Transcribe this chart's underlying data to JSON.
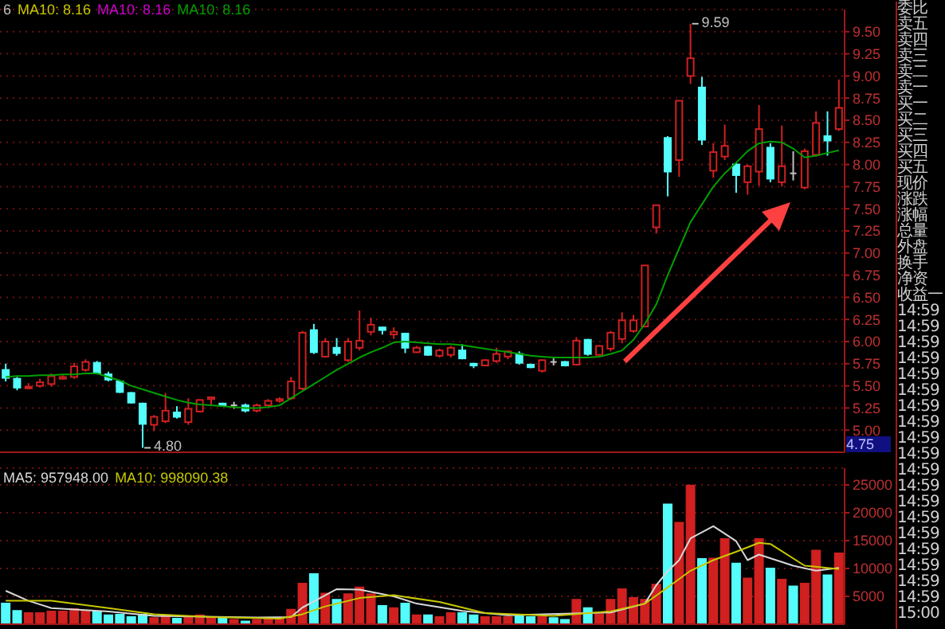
{
  "chart_data": [
    {
      "type": "candlestick",
      "categories": [
        null,
        null,
        null,
        null,
        null,
        null,
        null,
        null,
        null,
        null,
        null,
        null,
        null,
        null,
        null,
        null,
        null,
        null,
        null,
        null,
        null,
        null,
        null,
        null,
        null,
        null,
        null,
        null,
        null,
        null,
        null,
        null,
        null,
        null,
        null,
        null,
        null,
        null,
        null,
        null,
        null,
        null,
        null,
        null,
        null,
        null,
        null,
        null,
        null,
        null,
        null,
        null,
        null,
        null,
        null,
        null,
        null,
        null,
        null,
        null,
        null,
        null,
        null,
        null,
        null,
        null,
        null,
        null,
        null,
        null,
        null,
        null,
        null,
        null
      ],
      "ohlc": [
        [
          5.68,
          5.75,
          5.55,
          5.59
        ],
        [
          5.58,
          5.6,
          5.45,
          5.48
        ],
        [
          5.48,
          5.53,
          5.46,
          5.49
        ],
        [
          5.5,
          5.58,
          5.48,
          5.54
        ],
        [
          5.52,
          5.64,
          5.49,
          5.61
        ],
        [
          5.58,
          5.62,
          5.57,
          5.6
        ],
        [
          5.6,
          5.76,
          5.58,
          5.72
        ],
        [
          5.68,
          5.8,
          5.66,
          5.77
        ],
        [
          5.76,
          5.78,
          5.63,
          5.64
        ],
        [
          5.63,
          5.66,
          5.55,
          5.57
        ],
        [
          5.55,
          5.56,
          5.42,
          5.43
        ],
        [
          5.42,
          5.43,
          5.3,
          5.31
        ],
        [
          5.3,
          5.31,
          4.8,
          5.07
        ],
        [
          5.06,
          5.17,
          4.99,
          5.15
        ],
        [
          5.1,
          5.42,
          5.08,
          5.22
        ],
        [
          5.2,
          5.27,
          5.13,
          5.15
        ],
        [
          5.09,
          5.36,
          5.06,
          5.24
        ],
        [
          5.21,
          5.35,
          5.2,
          5.34
        ],
        [
          5.35,
          5.38,
          5.29,
          5.37
        ],
        [
          5.3,
          5.31,
          5.27,
          5.28
        ],
        [
          5.28,
          5.32,
          5.24,
          5.28
        ],
        [
          5.28,
          5.3,
          5.2,
          5.22
        ],
        [
          5.22,
          5.3,
          5.2,
          5.28
        ],
        [
          5.28,
          5.35,
          5.27,
          5.33
        ],
        [
          5.33,
          5.37,
          5.31,
          5.35
        ],
        [
          5.36,
          5.6,
          5.34,
          5.55
        ],
        [
          5.47,
          6.12,
          5.45,
          6.1
        ],
        [
          6.13,
          6.2,
          5.86,
          5.88
        ],
        [
          5.83,
          6.04,
          5.82,
          6.0
        ],
        [
          5.93,
          6.04,
          5.84,
          5.87
        ],
        [
          5.79,
          6.04,
          5.77,
          6.0
        ],
        [
          5.93,
          6.35,
          5.9,
          6.01
        ],
        [
          6.11,
          6.27,
          6.07,
          6.19
        ],
        [
          6.16,
          6.17,
          6.08,
          6.13
        ],
        [
          6.08,
          6.16,
          6.03,
          6.11
        ],
        [
          6.09,
          6.1,
          5.87,
          5.93
        ],
        [
          5.88,
          5.95,
          5.87,
          5.93
        ],
        [
          5.94,
          5.95,
          5.84,
          5.85
        ],
        [
          5.84,
          5.92,
          5.82,
          5.9
        ],
        [
          5.85,
          5.95,
          5.82,
          5.93
        ],
        [
          5.9,
          5.97,
          5.8,
          5.81
        ],
        [
          5.75,
          5.76,
          5.7,
          5.73
        ],
        [
          5.73,
          5.8,
          5.72,
          5.79
        ],
        [
          5.78,
          5.93,
          5.76,
          5.86
        ],
        [
          5.83,
          5.9,
          5.8,
          5.89
        ],
        [
          5.86,
          5.89,
          5.74,
          5.76
        ],
        [
          5.74,
          5.75,
          5.7,
          5.71
        ],
        [
          5.67,
          5.8,
          5.65,
          5.79
        ],
        [
          5.77,
          5.81,
          5.73,
          5.77
        ],
        [
          5.77,
          5.78,
          5.72,
          5.73
        ],
        [
          5.74,
          6.05,
          5.73,
          6.01
        ],
        [
          6.02,
          6.03,
          5.84,
          5.86
        ],
        [
          5.85,
          5.96,
          5.84,
          5.95
        ],
        [
          5.92,
          6.12,
          5.89,
          6.1
        ],
        [
          6.03,
          6.33,
          5.98,
          6.24
        ],
        [
          6.12,
          6.3,
          6.1,
          6.24
        ],
        [
          6.17,
          6.86,
          6.17,
          6.86
        ],
        [
          7.29,
          7.54,
          7.22,
          7.54
        ],
        [
          8.3,
          8.32,
          7.64,
          7.92
        ],
        [
          8.05,
          8.72,
          7.86,
          8.72
        ],
        [
          9.0,
          9.59,
          8.91,
          9.2
        ],
        [
          8.87,
          8.99,
          8.22,
          8.28
        ],
        [
          7.93,
          8.24,
          7.85,
          8.14
        ],
        [
          8.09,
          8.45,
          8.05,
          8.21
        ],
        [
          8.0,
          8.02,
          7.68,
          7.88
        ],
        [
          7.8,
          8.0,
          7.66,
          7.98
        ],
        [
          7.92,
          8.67,
          7.76,
          8.4
        ],
        [
          8.19,
          8.24,
          7.8,
          7.84
        ],
        [
          7.8,
          8.44,
          7.75,
          7.98
        ],
        [
          7.9,
          8.15,
          7.82,
          7.9
        ],
        [
          7.74,
          8.18,
          7.72,
          8.15
        ],
        [
          8.11,
          8.6,
          8.09,
          8.47
        ],
        [
          8.32,
          8.6,
          8.1,
          8.27
        ],
        [
          8.4,
          8.96,
          8.38,
          8.64
        ]
      ],
      "colors": [
        "#54fcfc",
        "#54fcfc",
        "#d02020",
        "#d02020",
        "#d02020",
        "#d02020",
        "#d02020",
        "#d02020",
        "#54fcfc",
        "#54fcfc",
        "#54fcfc",
        "#54fcfc",
        "#54fcfc",
        "#d02020",
        "#d02020",
        "#54fcfc",
        "#d02020",
        "#d02020",
        "#d02020",
        "#54fcfc",
        "#c0c0c0",
        "#54fcfc",
        "#d02020",
        "#d02020",
        "#d02020",
        "#d02020",
        "#d02020",
        "#54fcfc",
        "#d02020",
        "#54fcfc",
        "#d02020",
        "#d02020",
        "#d02020",
        "#54fcfc",
        "#d02020",
        "#54fcfc",
        "#d02020",
        "#54fcfc",
        "#d02020",
        "#d02020",
        "#54fcfc",
        "#54fcfc",
        "#d02020",
        "#d02020",
        "#d02020",
        "#54fcfc",
        "#54fcfc",
        "#d02020",
        "#c0c0c0",
        "#54fcfc",
        "#d02020",
        "#54fcfc",
        "#d02020",
        "#d02020",
        "#d02020",
        "#d02020",
        "#d02020",
        "#d02020",
        "#54fcfc",
        "#d02020",
        "#d02020",
        "#54fcfc",
        "#d02020",
        "#d02020",
        "#54fcfc",
        "#d02020",
        "#d02020",
        "#54fcfc",
        "#d02020",
        "#c0c0c0",
        "#d02020",
        "#d02020",
        "#54fcfc",
        "#d02020"
      ],
      "series": [
        {
          "type": "line",
          "name": "MA10: 8.16",
          "color": "#00a000",
          "values": [
            5.6,
            5.61,
            5.61,
            5.62,
            5.62,
            5.63,
            5.63,
            5.64,
            5.64,
            5.6,
            5.56,
            5.5,
            5.46,
            5.42,
            5.38,
            5.34,
            5.31,
            5.29,
            5.28,
            5.27,
            5.26,
            5.25,
            5.25,
            5.26,
            5.28,
            5.36,
            5.44,
            5.52,
            5.6,
            5.68,
            5.75,
            5.82,
            5.88,
            5.93,
            5.99,
            6.0,
            5.99,
            5.98,
            5.97,
            5.97,
            5.96,
            5.94,
            5.92,
            5.9,
            5.88,
            5.86,
            5.84,
            5.83,
            5.82,
            5.82,
            5.82,
            5.82,
            5.83,
            5.86,
            5.9,
            6.02,
            6.2,
            6.42,
            6.75,
            7.05,
            7.35,
            7.55,
            7.75,
            7.9,
            8.02,
            8.15,
            8.24,
            8.26,
            8.25,
            8.18,
            8.08,
            8.1,
            8.13,
            8.16
          ]
        }
      ],
      "ylim": [
        4.75,
        9.75
      ],
      "yticks": [
        {
          "value": 5,
          "label": "5.00"
        },
        {
          "value": 5.25,
          "label": "5.25"
        },
        {
          "value": 5.5,
          "label": "5.50"
        },
        {
          "value": 5.75,
          "label": "5.75"
        },
        {
          "value": 6,
          "label": "6.00"
        },
        {
          "value": 6.25,
          "label": "6.25"
        },
        {
          "value": 6.5,
          "label": "6.50"
        },
        {
          "value": 6.75,
          "label": "6.75"
        },
        {
          "value": 7,
          "label": "7.00"
        },
        {
          "value": 7.25,
          "label": "7.25"
        },
        {
          "value": 7.5,
          "label": "7.50"
        },
        {
          "value": 7.75,
          "label": "7.75"
        },
        {
          "value": 8,
          "label": "8.00"
        },
        {
          "value": 8.25,
          "label": "8.25"
        },
        {
          "value": 8.5,
          "label": "8.50"
        },
        {
          "value": 8.75,
          "label": "8.75"
        },
        {
          "value": 9,
          "label": "9.00"
        },
        {
          "value": 9.25,
          "label": "9.25"
        },
        {
          "value": 9.5,
          "label": "9.50"
        }
      ],
      "annotations": [
        "6",
        "MA10: 8.16",
        "MA10: 8.16",
        "9.59",
        "4.80",
        "4.75"
      ],
      "grid": "y",
      "legend": "top left",
      "tick_labels": "y"
    },
    {
      "type": "bar",
      "categories": [
        null,
        null,
        null,
        null,
        null,
        null,
        null,
        null,
        null,
        null,
        null,
        null,
        null,
        null,
        null,
        null,
        null,
        null,
        null,
        null,
        null,
        null,
        null,
        null,
        null,
        null,
        null,
        null,
        null,
        null,
        null,
        null,
        null,
        null,
        null,
        null,
        null,
        null,
        null,
        null,
        null,
        null,
        null,
        null,
        null,
        null,
        null,
        null,
        null,
        null,
        null,
        null,
        null,
        null,
        null,
        null,
        null,
        null,
        null,
        null,
        null,
        null,
        null,
        null,
        null,
        null,
        null,
        null,
        null,
        null,
        null,
        null,
        null,
        null
      ],
      "series": [
        {
          "type": "bar",
          "colors": [
            "#54fcfc",
            "#54fcfc",
            "#d02020",
            "#d02020",
            "#d02020",
            "#d02020",
            "#d02020",
            "#d02020",
            "#54fcfc",
            "#54fcfc",
            "#54fcfc",
            "#54fcfc",
            "#54fcfc",
            "#d02020",
            "#d02020",
            "#54fcfc",
            "#d02020",
            "#d02020",
            "#d02020",
            "#54fcfc",
            "#d02020",
            "#54fcfc",
            "#d02020",
            "#d02020",
            "#d02020",
            "#d02020",
            "#d02020",
            "#54fcfc",
            "#d02020",
            "#54fcfc",
            "#d02020",
            "#d02020",
            "#d02020",
            "#54fcfc",
            "#d02020",
            "#54fcfc",
            "#d02020",
            "#54fcfc",
            "#d02020",
            "#d02020",
            "#54fcfc",
            "#54fcfc",
            "#d02020",
            "#d02020",
            "#d02020",
            "#54fcfc",
            "#54fcfc",
            "#d02020",
            "#54fcfc",
            "#54fcfc",
            "#d02020",
            "#54fcfc",
            "#d02020",
            "#d02020",
            "#d02020",
            "#d02020",
            "#d02020",
            "#d02020",
            "#54fcfc",
            "#d02020",
            "#d02020",
            "#54fcfc",
            "#d02020",
            "#d02020",
            "#54fcfc",
            "#d02020",
            "#d02020",
            "#54fcfc",
            "#d02020",
            "#54fcfc",
            "#d02020",
            "#d02020",
            "#54fcfc",
            "#d02020"
          ],
          "values": [
            3700,
            2400,
            2000,
            2000,
            2300,
            2300,
            2700,
            2400,
            2300,
            1600,
            1700,
            1300,
            1700,
            1100,
            1600,
            1000,
            1300,
            1600,
            1300,
            1100,
            800,
            500,
            800,
            1000,
            1000,
            2600,
            7300,
            9000,
            5500,
            4400,
            5400,
            6600,
            5400,
            3300,
            2900,
            3700,
            1600,
            1600,
            1300,
            2000,
            2000,
            1600,
            1300,
            1300,
            1300,
            1500,
            1300,
            1300,
            1100,
            800,
            4400,
            2900,
            1800,
            4400,
            6300,
            4700,
            4400,
            7100,
            21500,
            18200,
            24900,
            11700,
            11800,
            15300,
            10900,
            8200,
            15300,
            10000,
            8000,
            6800,
            7300,
            13200,
            8800,
            12700
          ]
        },
        {
          "type": "line",
          "name": "MA5: 957948.00",
          "color": "#d8d8d8",
          "values": [
            6000,
            null,
            4200,
            null,
            2900,
            null,
            null,
            null,
            null,
            2300,
            null,
            null,
            null,
            1500,
            null,
            null,
            null,
            null,
            null,
            null,
            null,
            null,
            1200,
            null,
            null,
            1300,
            3000,
            null,
            5200,
            6300,
            null,
            6200,
            null,
            null,
            5000,
            null,
            3700,
            null,
            null,
            null,
            2400,
            null,
            null,
            null,
            1600,
            null,
            null,
            null,
            null,
            null,
            null,
            null,
            null,
            2100,
            null,
            null,
            3700,
            7000,
            9500,
            11500,
            15400,
            null,
            17600,
            null,
            14900,
            11500,
            12500,
            null,
            null,
            10500,
            null,
            9600,
            null,
            10100
          ]
        },
        {
          "type": "line",
          "name": "MA10: 998090.38",
          "color": "#c8c800",
          "values": [
            4200,
            null,
            null,
            null,
            4200,
            null,
            null,
            null,
            null,
            2900,
            null,
            null,
            null,
            1800,
            null,
            null,
            null,
            null,
            1300,
            null,
            null,
            null,
            1100,
            null,
            1000,
            null,
            1800,
            null,
            3200,
            null,
            null,
            4700,
            null,
            null,
            5200,
            null,
            null,
            null,
            4000,
            null,
            3000,
            null,
            2000,
            null,
            null,
            null,
            null,
            null,
            1500,
            null,
            null,
            null,
            null,
            2300,
            null,
            null,
            3700,
            null,
            6600,
            null,
            9600,
            null,
            11500,
            null,
            13000,
            null,
            14600,
            14400,
            null,
            null,
            10500,
            null,
            null,
            9900
          ]
        }
      ],
      "ylim": [
        0,
        28000
      ],
      "yticks": [
        5000,
        10000,
        15000,
        20000,
        25000
      ],
      "grid": "y",
      "legend": "top left",
      "tick_labels": "y"
    },
    {
      "type": "other",
      "annotations": [
        "委比",
        "卖五",
        "卖四",
        "卖三",
        "卖二",
        "卖一",
        "买一",
        "买二",
        "买三",
        "买四",
        "买五",
        "现价",
        "涨跌",
        "涨幅",
        "总量",
        "外盘",
        "换手",
        "净资",
        "收益一",
        "14:59",
        "14:59",
        "14:59",
        "14:59",
        "14:59",
        "14:59",
        "14:59",
        "14:59",
        "14:59",
        "14:59",
        "14:59",
        "14:59",
        "14:59",
        "14:59",
        "14:59",
        "14:59",
        "14:59",
        "14:59",
        "14:59",
        "15:00"
      ]
    }
  ]
}
